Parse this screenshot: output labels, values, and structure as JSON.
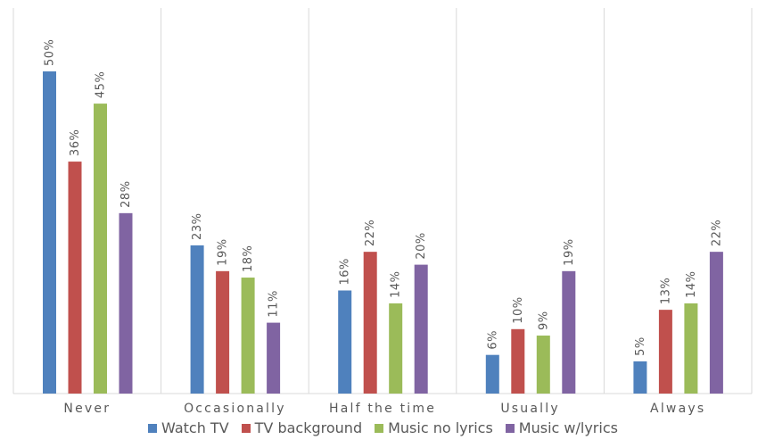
{
  "chart_data": {
    "type": "bar",
    "categories": [
      "Never",
      "Occasionally",
      "Half the time",
      "Usually",
      "Always"
    ],
    "series": [
      {
        "name": "Watch TV",
        "color": "#4F81BD",
        "values": [
          50,
          23,
          16,
          6,
          5
        ],
        "labels": [
          "50%",
          "23%",
          "16%",
          "6%",
          "5%"
        ]
      },
      {
        "name": "TV background",
        "color": "#C0504D",
        "values": [
          36,
          19,
          22,
          10,
          13
        ],
        "labels": [
          "36%",
          "19%",
          "22%",
          "10%",
          "13%"
        ]
      },
      {
        "name": "Music no lyrics",
        "color": "#9BBB59",
        "values": [
          45,
          18,
          14,
          9,
          14
        ],
        "labels": [
          "45%",
          "18%",
          "14%",
          "9%",
          "14%"
        ]
      },
      {
        "name": "Music w/lyrics",
        "color": "#8064A2",
        "values": [
          28,
          11,
          20,
          19,
          22
        ],
        "labels": [
          "28%",
          "11%",
          "20%",
          "19%",
          "22%"
        ]
      }
    ],
    "ylim": [
      0,
      60
    ],
    "grid": "vertical category separators",
    "legend_position": "bottom"
  }
}
